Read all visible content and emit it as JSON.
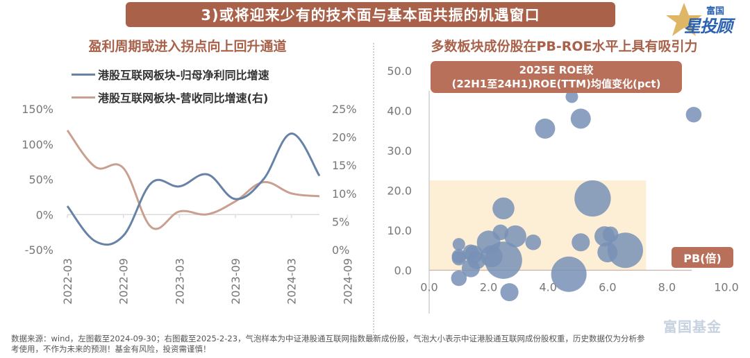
{
  "banner": {
    "title": "3)或将迎来少有的技术面与基本面共振的机遇窗口"
  },
  "logo": {
    "top": "富国",
    "main": "星投顾",
    "watermark": "富国基金"
  },
  "colors": {
    "accent": "#a9614a",
    "series_blue": "#6682a6",
    "series_tan": "#c9a090",
    "bubble": "#7891b6",
    "highlight_zone": "#fdebcf"
  },
  "chart_data": [
    {
      "type": "line",
      "title": "盈利周期或进入拐点向上回升通道",
      "legend_position": "top",
      "x": [
        "2022-03",
        "2022-06",
        "2022-09",
        "2022-12",
        "2023-03",
        "2023-06",
        "2023-09",
        "2023-12",
        "2024-03",
        "2024-06",
        "2024-09"
      ],
      "xtick_labels": [
        "2022-03",
        "2022-09",
        "2023-03",
        "2023-09",
        "2024-03",
        "2024-09"
      ],
      "series": [
        {
          "name": "港股互联网板块-归母净利同比增速",
          "axis": "left",
          "values": [
            12,
            -38,
            -30,
            45,
            40,
            57,
            22,
            50,
            115,
            55,
            null
          ]
        },
        {
          "name": "港股互联网板块-营收同比增速(右)",
          "axis": "right",
          "values": [
            21.2,
            14.7,
            14.5,
            4.0,
            6.8,
            6.3,
            8.6,
            12.0,
            10.0,
            9.5,
            null
          ]
        }
      ],
      "y_left": {
        "ticks": [
          "150%",
          "100%",
          "50%",
          "0%",
          "-50%"
        ],
        "range": [
          -50,
          150
        ]
      },
      "y_right": {
        "ticks": [
          "25%",
          "20%",
          "15%",
          "10%",
          "5%",
          "0%"
        ],
        "range": [
          0,
          25
        ]
      },
      "grid": false
    },
    {
      "type": "scatter",
      "title": "多数板块成份股在PB-ROE水平上具有吸引力",
      "ylabel": "2025E ROE较(22H1至24H1)ROE(TTM)均值变化(pct)",
      "ylabel_line1": "2025E ROE较",
      "ylabel_line2": "(22H1至24H1)ROE(TTM)均值变化(pct)",
      "xlabel": "PB(倍)",
      "xlim": [
        0,
        10
      ],
      "ylim": [
        -10,
        50
      ],
      "xticks": [
        "0.0",
        "2.0",
        "4.0",
        "6.0",
        "8.0",
        "10.0"
      ],
      "yticks": [
        "50.0",
        "40.0",
        "30.0",
        "20.0",
        "10.0",
        "0.0"
      ],
      "highlight_region": {
        "x": [
          0,
          7.3
        ],
        "y": [
          0,
          22.5
        ]
      },
      "points": [
        {
          "x": 4.8,
          "y": 43.5,
          "size": 1
        },
        {
          "x": 8.9,
          "y": 39.0,
          "size": 2
        },
        {
          "x": 3.9,
          "y": 35.5,
          "size": 4
        },
        {
          "x": 5.1,
          "y": 38.0,
          "size": 4
        },
        {
          "x": 2.5,
          "y": 15.5,
          "size": 5
        },
        {
          "x": 5.5,
          "y": 18.0,
          "size": 17
        },
        {
          "x": 2.4,
          "y": 9.5,
          "size": 2
        },
        {
          "x": 2.9,
          "y": 8.5,
          "size": 5
        },
        {
          "x": 3.5,
          "y": 7.0,
          "size": 2
        },
        {
          "x": 2.0,
          "y": 7.0,
          "size": 6
        },
        {
          "x": 1.0,
          "y": 6.5,
          "size": 1
        },
        {
          "x": 1.4,
          "y": 4.5,
          "size": 2
        },
        {
          "x": 1.5,
          "y": 4.0,
          "size": 3
        },
        {
          "x": 1.6,
          "y": 2.5,
          "size": 3
        },
        {
          "x": 1.0,
          "y": 3.5,
          "size": 1.5
        },
        {
          "x": 1.0,
          "y": 3.0,
          "size": 1.5
        },
        {
          "x": 2.1,
          "y": 3.5,
          "size": 5
        },
        {
          "x": 2.5,
          "y": 2.5,
          "size": 18
        },
        {
          "x": 1.4,
          "y": 0.5,
          "size": 3
        },
        {
          "x": 1.0,
          "y": -2.0,
          "size": 2
        },
        {
          "x": 2.7,
          "y": -5.5,
          "size": 3
        },
        {
          "x": 5.1,
          "y": 7.0,
          "size": 3
        },
        {
          "x": 5.9,
          "y": 8.5,
          "size": 4
        },
        {
          "x": 6.1,
          "y": 9.0,
          "size": 2
        },
        {
          "x": 6.0,
          "y": 4.5,
          "size": 4
        },
        {
          "x": 6.6,
          "y": 5.0,
          "size": 16
        },
        {
          "x": 4.7,
          "y": -1.0,
          "size": 16
        }
      ]
    }
  ],
  "footer": {
    "line1": "数据来源：wind，左图截至2024-09-30；右图截至2025-2-23，气泡样本为中证港股通互联网指数最新成份股，气泡大小表示中证港股通互联网成份股权重，历史数据仅为分析参",
    "line2": "考使用，不作为未来的预测！基金有风险，投资需谨慎！"
  }
}
